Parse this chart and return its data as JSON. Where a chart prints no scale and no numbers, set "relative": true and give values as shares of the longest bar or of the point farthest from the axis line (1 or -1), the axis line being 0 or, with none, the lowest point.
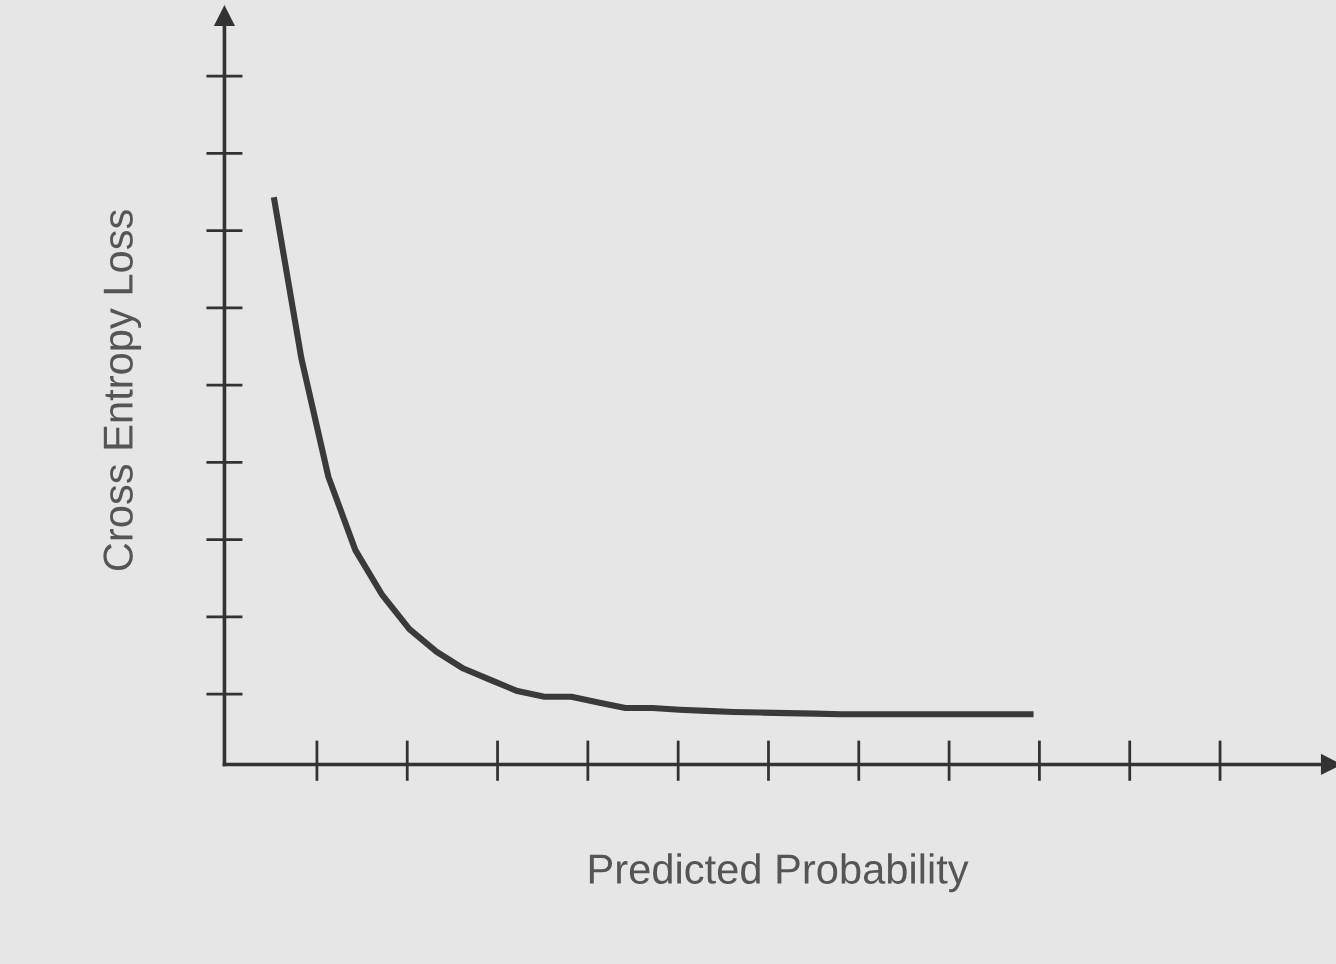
{
  "chart_data": {
    "type": "line",
    "relative": true,
    "xlabel": "Predicted Probability",
    "ylabel": "Cross Entropy Loss",
    "legend": false,
    "marker": "none",
    "line_style": "solid",
    "categories": [
      null,
      null,
      null,
      null,
      null,
      null,
      null,
      null,
      null,
      null,
      null,
      null,
      null,
      null,
      null,
      null,
      null,
      null,
      null,
      null,
      null,
      null,
      null,
      null,
      null,
      null,
      null,
      null,
      null
    ],
    "series": [
      {
        "color": "#3a3a3a",
        "values": [
          1,
          0.72,
          0.51,
          0.38,
          0.3,
          0.24,
          0.2,
          0.17,
          0.15,
          0.13,
          0.12,
          0.12,
          0.11,
          0.1,
          0.1,
          0.097,
          0.095,
          0.093,
          0.092,
          0.091,
          0.09,
          0.089,
          0.089,
          0.089,
          0.089,
          0.089,
          0.089,
          0.089,
          0.089
        ]
      }
    ]
  }
}
